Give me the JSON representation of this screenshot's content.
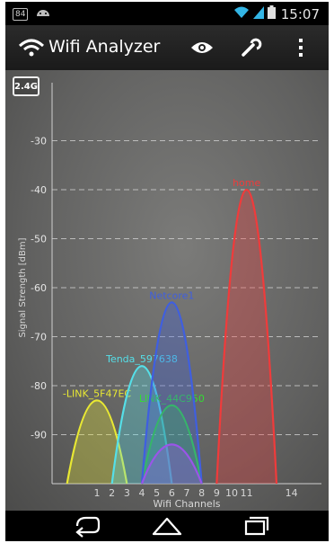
{
  "status_bar": {
    "left_label": "84",
    "time": "15:07",
    "icons": [
      "notification-icon",
      "android-icon",
      "wifi-icon",
      "signal-icon",
      "battery-icon"
    ]
  },
  "action_bar": {
    "title": "Wifi Analyzer",
    "icons": [
      "wifi-logo-icon",
      "eye-icon",
      "wrench-icon",
      "overflow-menu-icon"
    ]
  },
  "band": "2.4G",
  "chart_data": {
    "type": "area",
    "xlabel": "Wifi Channels",
    "ylabel": "Signal Strength [dBm]",
    "ylim": [
      -100,
      -20
    ],
    "xlim": [
      -2,
      16
    ],
    "grid": true,
    "xticks": [
      1,
      2,
      3,
      4,
      5,
      6,
      7,
      8,
      9,
      10,
      11,
      14
    ],
    "yticks": [
      -30,
      -40,
      -50,
      -60,
      -70,
      -80,
      -90
    ],
    "ytick_labels": [
      "-30",
      "-40",
      "-50",
      "-60",
      "-70",
      "-80",
      "-90"
    ],
    "series": [
      {
        "name": "-LINK_5F47EC",
        "channel": 1,
        "peak_dbm": -83,
        "color": "#e8e833"
      },
      {
        "name": "Tenda_597638",
        "channel": 4,
        "peak_dbm": -76,
        "color": "#55dfe8"
      },
      {
        "name": "LINK_44C950",
        "channel": 6,
        "peak_dbm": -84,
        "color": "#33dd33"
      },
      {
        "name": "Netcore1",
        "channel": 6,
        "peak_dbm": -63,
        "color": "#3f5fe0"
      },
      {
        "name": "home",
        "channel": 11,
        "peak_dbm": -40,
        "color": "#f03b3b"
      },
      {
        "name": "",
        "channel": 6,
        "peak_dbm": -92,
        "color": "#9a55e8"
      }
    ]
  },
  "nav_bar": {
    "icons": [
      "back-icon",
      "home-icon",
      "recent-apps-icon"
    ]
  }
}
